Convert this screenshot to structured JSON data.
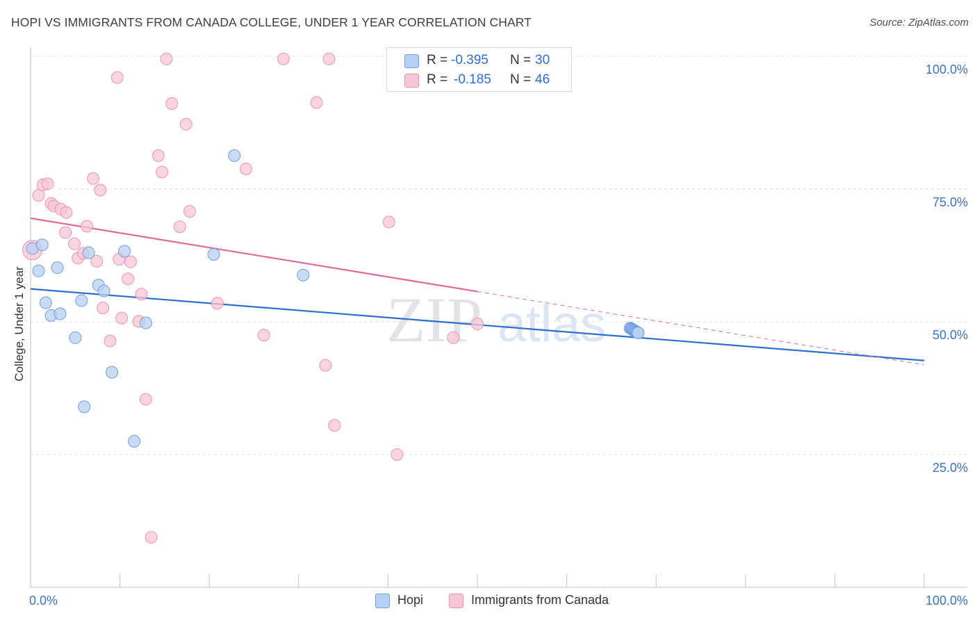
{
  "header": {
    "title": "HOPI VS IMMIGRANTS FROM CANADA COLLEGE, UNDER 1 YEAR CORRELATION CHART",
    "source": "Source: ZipAtlas.com"
  },
  "watermark": {
    "zip": "ZIP",
    "atlas": "atlas"
  },
  "legend": {
    "rows": [
      {
        "r_label": "R =",
        "r_value": "-0.395",
        "n_label": "N =",
        "n_value": "30"
      },
      {
        "r_label": "R =",
        "r_value": "-0.185",
        "n_label": "N =",
        "n_value": "46"
      }
    ]
  },
  "bottom_legend": {
    "series_a": "Hopi",
    "series_b": "Immigrants from Canada"
  },
  "colors": {
    "hopi_fill": "#b8d0f2",
    "hopi_stroke": "#6e9fe0",
    "hopi_line": "#2c6fd0",
    "canada_fill": "#f8c6d6",
    "canada_stroke": "#e896b0",
    "canada_line": "#e06b93",
    "tick_text": "#3b73c8",
    "grid": "#d9dce1"
  },
  "chart_data": {
    "type": "scatter",
    "title": "HOPI VS IMMIGRANTS FROM CANADA COLLEGE, UNDER 1 YEAR CORRELATION CHART",
    "xlabel": "",
    "ylabel": "College, Under 1 year",
    "xlim": [
      0,
      100
    ],
    "ylim": [
      0,
      100
    ],
    "x_tick_labels": [
      "0.0%",
      "100.0%"
    ],
    "y_ticks": [
      25,
      50,
      75,
      100
    ],
    "y_tick_labels": [
      "25.0%",
      "50.0%",
      "75.0%",
      "100.0%"
    ],
    "series": [
      {
        "name": "Hopi",
        "r": -0.395,
        "n": 30,
        "points": [
          [
            0.2,
            63.8
          ],
          [
            1.3,
            64.5
          ],
          [
            0.9,
            59.6
          ],
          [
            3.0,
            60.2
          ],
          [
            6.5,
            63.0
          ],
          [
            10.5,
            63.3
          ],
          [
            22.8,
            81.3
          ],
          [
            20.5,
            62.7
          ],
          [
            30.5,
            58.8
          ],
          [
            1.7,
            53.6
          ],
          [
            2.3,
            51.2
          ],
          [
            3.3,
            51.5
          ],
          [
            5.7,
            54.0
          ],
          [
            7.6,
            56.9
          ],
          [
            8.2,
            55.8
          ],
          [
            12.9,
            49.8
          ],
          [
            5.0,
            47.0
          ],
          [
            9.1,
            40.5
          ],
          [
            6.0,
            34.0
          ],
          [
            11.6,
            27.5
          ],
          [
            67.1,
            48.8
          ],
          [
            67.2,
            48.7
          ],
          [
            67.3,
            48.6
          ],
          [
            67.4,
            48.5
          ],
          [
            67.5,
            48.4
          ],
          [
            67.6,
            48.3
          ],
          [
            67.7,
            48.2
          ],
          [
            67.8,
            48.1
          ],
          [
            67.9,
            48.0
          ],
          [
            68.0,
            47.9
          ]
        ]
      },
      {
        "name": "Immigrants from Canada",
        "r": -0.185,
        "n": 46,
        "points": [
          [
            0.2,
            63.5
          ],
          [
            0.9,
            73.8
          ],
          [
            1.4,
            75.8
          ],
          [
            1.9,
            76.0
          ],
          [
            2.3,
            72.3
          ],
          [
            2.6,
            71.8
          ],
          [
            3.4,
            71.2
          ],
          [
            4.0,
            70.6
          ],
          [
            3.9,
            66.8
          ],
          [
            4.9,
            64.7
          ],
          [
            5.3,
            62.0
          ],
          [
            5.9,
            62.9
          ],
          [
            6.3,
            68.0
          ],
          [
            7.0,
            77.0
          ],
          [
            7.8,
            74.8
          ],
          [
            7.4,
            61.4
          ],
          [
            8.1,
            52.6
          ],
          [
            8.9,
            46.4
          ],
          [
            9.7,
            96.0
          ],
          [
            9.9,
            61.8
          ],
          [
            10.2,
            50.7
          ],
          [
            10.9,
            58.1
          ],
          [
            11.2,
            61.3
          ],
          [
            12.1,
            50.1
          ],
          [
            12.4,
            55.2
          ],
          [
            12.9,
            35.4
          ],
          [
            13.5,
            9.4
          ],
          [
            14.3,
            81.3
          ],
          [
            14.7,
            78.2
          ],
          [
            15.2,
            99.5
          ],
          [
            15.8,
            91.1
          ],
          [
            16.7,
            67.9
          ],
          [
            17.4,
            87.2
          ],
          [
            17.8,
            70.8
          ],
          [
            20.9,
            53.5
          ],
          [
            24.1,
            78.8
          ],
          [
            26.1,
            47.5
          ],
          [
            28.3,
            99.5
          ],
          [
            32.0,
            91.3
          ],
          [
            33.0,
            41.8
          ],
          [
            33.4,
            99.5
          ],
          [
            34.0,
            30.5
          ],
          [
            40.1,
            68.8
          ],
          [
            41.0,
            25.0
          ],
          [
            47.3,
            47.0
          ],
          [
            50.0,
            49.6
          ]
        ]
      }
    ],
    "trendlines": [
      {
        "series": "Hopi",
        "x": [
          0,
          100
        ],
        "y": [
          56.2,
          42.7
        ],
        "style": "solid"
      },
      {
        "series": "Immigrants from Canada",
        "x": [
          0,
          50
        ],
        "y": [
          69.5,
          55.7
        ],
        "style": "solid"
      },
      {
        "series": "Immigrants from Canada",
        "x": [
          50,
          100
        ],
        "y": [
          55.7,
          41.9
        ],
        "style": "dashed"
      }
    ]
  }
}
